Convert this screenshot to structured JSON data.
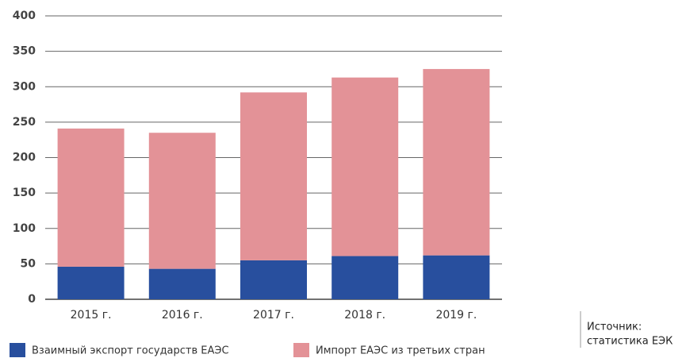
{
  "chart_data": {
    "type": "stacked_bar",
    "categories": [
      "2015 г.",
      "2016 г.",
      "2017 г.",
      "2018 г.",
      "2019 г."
    ],
    "series": [
      {
        "name": "Взаимный экспорт государств ЕАЭС",
        "color": "#284f9e",
        "values": [
          46,
          43,
          55,
          61,
          62
        ]
      },
      {
        "name": "Импорт ЕАЭС из третьих стран",
        "color": "#e39297",
        "values": [
          195,
          192,
          237,
          252,
          263
        ]
      }
    ],
    "ylim": [
      0,
      400
    ],
    "yticks": [
      0,
      50,
      100,
      150,
      200,
      250,
      300,
      350,
      400
    ],
    "grid": true,
    "annotations": [
      "Источник:",
      "статистика ЕЭК"
    ]
  }
}
